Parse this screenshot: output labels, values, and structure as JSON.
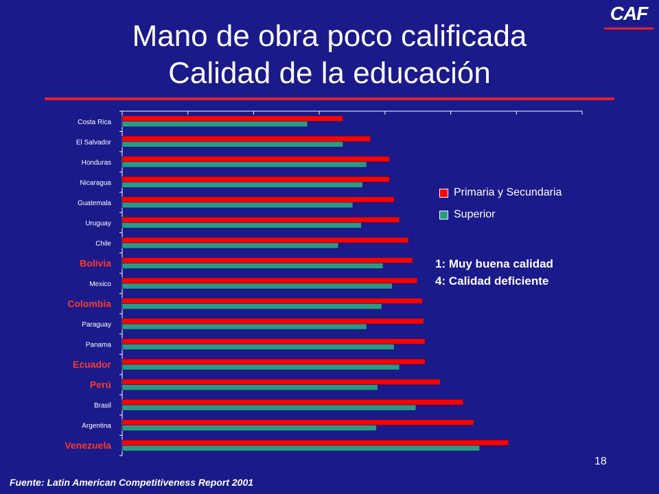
{
  "header": {
    "logo_text": "CAF",
    "title_line1": "Mano de obra poco calificada",
    "title_line2": "Calidad de la educación"
  },
  "legend": {
    "primary": "Primaria y Secundaria",
    "superior": "Superior"
  },
  "notes": {
    "line1": "1: Muy buena calidad",
    "line2": "4: Calidad deficiente"
  },
  "footer": {
    "page_number": "18",
    "source": "Fuente: Latin American Competitiveness Report 2001"
  },
  "colors": {
    "background": "#1a1a8a",
    "primary_bar": "#ff0000",
    "superior_bar": "#2a9a86",
    "highlight_label": "#ff3a2a",
    "accent_rule": "#e8202a"
  },
  "chart_data": {
    "type": "bar",
    "orientation": "horizontal",
    "categories": [
      "Costa Rica",
      "El Salvador",
      "Honduras",
      "Nicaragua",
      "Guatemala",
      "Uruguay",
      "Chile",
      "Bolivia",
      "Mexico",
      "Colombia",
      "Paraguay",
      "Panama",
      "Ecuador",
      "Perú",
      "Brasil",
      "Argentina",
      "Venezuela"
    ],
    "highlighted_categories": [
      "Bolivia",
      "Colombia",
      "Ecuador",
      "Perú",
      "Venezuela"
    ],
    "series": [
      {
        "name": "Primaria y Secundaria",
        "color": "#ff0000",
        "values": [
          3.36,
          3.78,
          4.07,
          4.07,
          4.14,
          4.22,
          4.36,
          4.42,
          4.49,
          4.57,
          4.59,
          4.61,
          4.61,
          4.84,
          5.19,
          5.35,
          5.88
        ]
      },
      {
        "name": "Superior",
        "color": "#2a9a86",
        "values": [
          2.82,
          3.36,
          3.72,
          3.66,
          3.51,
          3.64,
          3.29,
          3.97,
          4.11,
          3.95,
          3.72,
          4.14,
          4.22,
          3.89,
          4.47,
          3.87,
          5.44
        ]
      }
    ],
    "xlim": [
      0,
      7
    ],
    "xticks": [
      0,
      1,
      2,
      3,
      4,
      5,
      6,
      7
    ],
    "tick_labels_shown": false,
    "grid": false,
    "legend_position": "right"
  }
}
